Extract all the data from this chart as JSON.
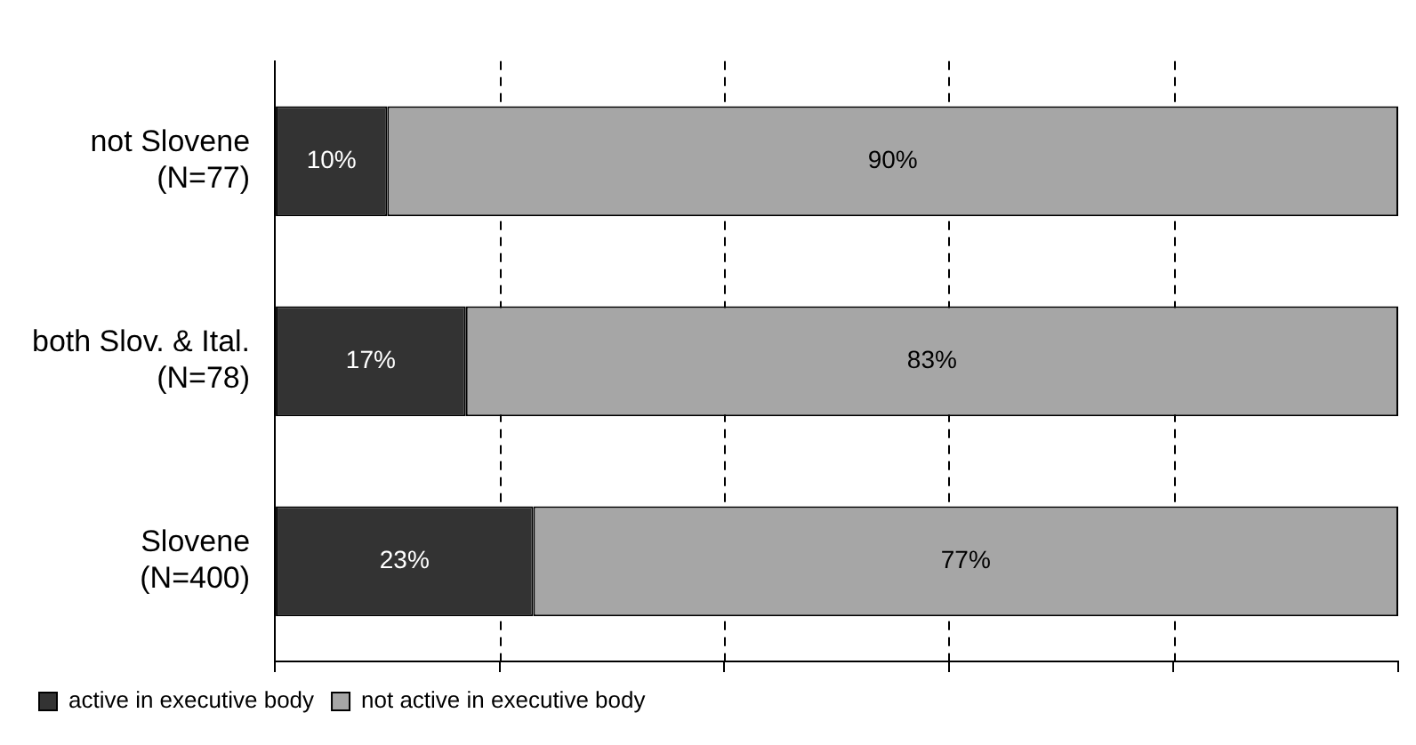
{
  "chart_data": {
    "type": "bar",
    "orientation": "horizontal",
    "stacked": true,
    "categories": [
      "not Slovene\n(N=77)",
      "both Slov. & Ital.\n(N=78)",
      "Slovene\n(N=400)"
    ],
    "series": [
      {
        "name": "active in executive body",
        "color": "#333333",
        "values": [
          10,
          17,
          23
        ],
        "value_labels": [
          "10%",
          "17%",
          "23%"
        ]
      },
      {
        "name": "not active in executive body",
        "color": "#a6a6a6",
        "values": [
          90,
          83,
          77
        ],
        "value_labels": [
          "90%",
          "83%",
          "77%"
        ]
      }
    ],
    "tick_labels": "y",
    "grid": "x",
    "legend": "bottom"
  }
}
